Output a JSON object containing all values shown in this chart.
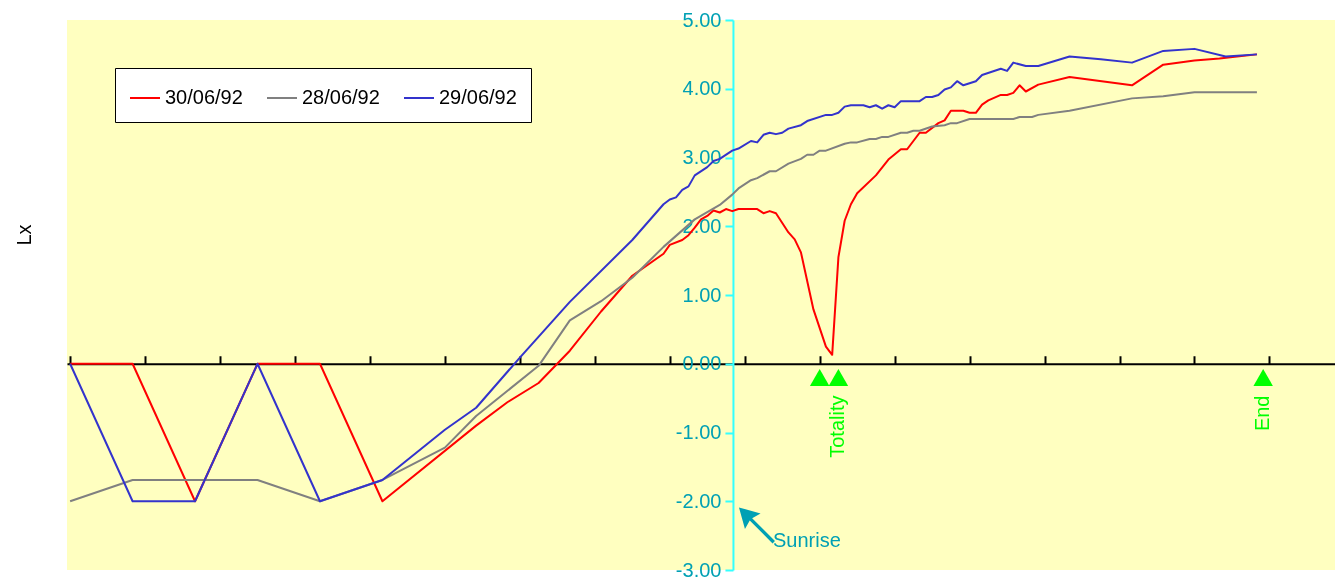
{
  "chart_data": {
    "type": "line",
    "ylabel": "Lx",
    "legend": "top left",
    "tick_labels": "y",
    "marker": "none",
    "line_style": "solid",
    "categories": [
      null,
      null,
      null,
      null,
      null,
      null,
      null,
      null,
      null,
      null,
      null,
      null,
      null,
      null,
      null,
      null,
      null,
      null,
      null,
      null,
      null,
      null,
      null,
      null,
      null,
      null,
      null,
      null,
      null,
      null,
      null,
      null,
      null,
      null,
      null,
      null,
      null,
      null,
      null,
      null,
      null,
      null,
      null,
      null,
      null,
      null,
      null,
      null,
      null,
      null,
      null,
      null,
      null,
      null,
      null,
      null,
      null,
      null,
      null,
      null,
      null,
      null,
      null,
      null,
      null,
      null,
      null,
      null,
      null,
      null,
      null,
      null,
      null,
      null,
      null,
      null,
      null,
      null,
      null,
      null,
      null,
      null,
      null,
      null,
      null,
      null,
      null,
      null,
      null,
      null,
      null,
      null,
      null,
      null,
      null,
      null,
      null,
      null,
      null,
      null,
      null,
      null,
      null,
      null,
      null,
      null,
      null,
      null,
      null,
      null,
      null,
      null,
      null,
      null,
      null,
      null,
      null,
      null,
      null,
      null,
      null,
      null,
      null,
      null,
      null,
      null,
      null,
      null,
      null,
      null,
      null,
      null,
      null,
      null,
      null,
      null,
      null,
      null,
      null,
      null,
      null,
      null,
      null,
      null,
      null,
      null,
      null,
      null,
      null,
      null,
      null,
      null,
      null,
      null,
      null,
      null,
      null,
      null,
      null,
      null,
      null,
      null,
      null,
      null,
      null,
      null,
      null,
      null,
      null,
      null,
      null,
      null,
      null,
      null,
      null,
      null,
      null,
      null,
      null,
      null,
      null,
      null,
      null,
      null,
      null,
      null,
      null,
      null,
      null,
      null,
      null,
      null,
      null,
      null,
      null,
      null,
      null,
      null,
      null,
      null,
      null,
      null,
      null
    ],
    "ylim": [
      -3,
      5
    ],
    "yticks": [
      {
        "value": -3,
        "label": "-3.00"
      },
      {
        "value": -2,
        "label": "-2.00"
      },
      {
        "value": -1,
        "label": "-1.00"
      },
      {
        "value": 0,
        "label": "0.00"
      },
      {
        "value": 1,
        "label": "1.00"
      },
      {
        "value": 2,
        "label": "2.00"
      },
      {
        "value": 3,
        "label": "3.00"
      },
      {
        "value": 4,
        "label": "4.00"
      },
      {
        "value": 5,
        "label": "5.00"
      }
    ],
    "series": [
      {
        "name": "30/06/92",
        "color": "#ff0000",
        "values": [
          0,
          null,
          null,
          null,
          null,
          null,
          null,
          null,
          null,
          null,
          0,
          null,
          null,
          null,
          null,
          null,
          null,
          null,
          null,
          null,
          -2,
          null,
          null,
          null,
          null,
          null,
          null,
          null,
          null,
          null,
          0,
          null,
          null,
          null,
          null,
          null,
          null,
          null,
          null,
          null,
          0,
          null,
          null,
          null,
          null,
          null,
          null,
          null,
          null,
          null,
          -2,
          null,
          null,
          null,
          null,
          null,
          null,
          null,
          null,
          null,
          null,
          null,
          null,
          null,
          null,
          -0.9,
          null,
          null,
          null,
          null,
          -0.56,
          null,
          null,
          null,
          null,
          -0.28,
          null,
          null,
          null,
          null,
          0.19,
          null,
          null,
          null,
          null,
          0.76,
          null,
          null,
          null,
          null,
          1.28,
          null,
          null,
          null,
          null,
          1.6,
          1.73,
          null,
          1.8,
          1.87,
          1.98,
          2.1,
          2.15,
          2.23,
          2.2,
          2.25,
          2.22,
          2.25,
          null,
          null,
          2.25,
          2.19,
          2.22,
          2.19,
          null,
          1.91,
          1.81,
          1.62,
          null,
          0.79,
          null,
          0.25,
          0.13,
          1.55,
          2.08,
          2.32,
          2.48,
          null,
          null,
          2.74,
          null,
          2.97,
          null,
          3.12,
          3.12,
          null,
          3.36,
          3.36,
          null,
          3.5,
          3.54,
          3.68,
          null,
          3.68,
          3.65,
          3.65,
          3.77,
          3.83,
          null,
          3.91,
          3.91,
          3.94,
          4.05,
          3.96,
          null,
          4.06,
          null,
          null,
          null,
          null,
          4.17,
          null,
          null,
          null,
          null,
          null,
          null,
          null,
          null,
          null,
          4.05,
          null,
          null,
          null,
          null,
          4.35,
          null,
          null,
          null,
          null,
          4.41,
          null,
          null,
          null,
          4.44,
          null,
          null,
          null,
          null,
          null,
          4.5,
          null,
          null,
          null,
          null,
          null,
          null,
          null,
          null,
          null,
          null,
          null,
          null
        ]
      },
      {
        "name": "28/06/92",
        "color": "#808080",
        "values": [
          -2,
          null,
          null,
          null,
          null,
          null,
          null,
          null,
          null,
          null,
          -1.69,
          null,
          null,
          null,
          null,
          null,
          null,
          null,
          null,
          null,
          null,
          null,
          null,
          null,
          null,
          null,
          null,
          null,
          null,
          null,
          -1.69,
          null,
          null,
          null,
          null,
          null,
          null,
          null,
          null,
          null,
          -2,
          null,
          null,
          null,
          null,
          null,
          null,
          null,
          null,
          null,
          -1.69,
          null,
          null,
          null,
          null,
          null,
          null,
          null,
          null,
          null,
          -1.22,
          null,
          null,
          null,
          null,
          -0.76,
          null,
          null,
          null,
          null,
          null,
          null,
          null,
          null,
          null,
          -0.03,
          null,
          null,
          null,
          null,
          0.63,
          null,
          null,
          null,
          null,
          0.91,
          null,
          null,
          null,
          null,
          1.25,
          null,
          null,
          null,
          null,
          1.7,
          null,
          null,
          null,
          null,
          2.1,
          null,
          null,
          null,
          2.31,
          null,
          2.46,
          2.55,
          null,
          2.67,
          2.7,
          null,
          2.8,
          2.8,
          null,
          2.91,
          null,
          2.98,
          3.04,
          3.04,
          3.1,
          3.1,
          null,
          null,
          3.2,
          3.22,
          3.22,
          null,
          3.27,
          3.27,
          3.3,
          3.3,
          null,
          3.36,
          3.36,
          3.39,
          3.39,
          null,
          3.45,
          null,
          3.47,
          3.5,
          3.5,
          null,
          3.56,
          null,
          null,
          null,
          null,
          null,
          null,
          3.56,
          3.59,
          null,
          3.59,
          3.62,
          null,
          null,
          null,
          null,
          3.68,
          null,
          null,
          null,
          null,
          null,
          null,
          null,
          null,
          null,
          3.86,
          null,
          null,
          null,
          null,
          3.89,
          null,
          null,
          null,
          null,
          3.95,
          null,
          null,
          null,
          null,
          null,
          null,
          null,
          null,
          null,
          3.95,
          null,
          null,
          null,
          null,
          null,
          null,
          null,
          null,
          null,
          null,
          null,
          null
        ]
      },
      {
        "name": "29/06/92",
        "color": "#3333cc",
        "values": [
          0,
          null,
          null,
          null,
          null,
          null,
          null,
          null,
          null,
          null,
          -2,
          null,
          null,
          null,
          null,
          null,
          null,
          null,
          null,
          null,
          -2,
          null,
          null,
          null,
          null,
          null,
          null,
          null,
          null,
          null,
          0,
          null,
          null,
          null,
          null,
          null,
          null,
          null,
          null,
          null,
          -2,
          null,
          null,
          null,
          null,
          null,
          null,
          null,
          null,
          null,
          -1.69,
          null,
          null,
          null,
          null,
          null,
          null,
          null,
          null,
          null,
          -0.96,
          null,
          null,
          null,
          null,
          -0.64,
          null,
          null,
          null,
          null,
          null,
          null,
          0.09,
          null,
          null,
          null,
          null,
          null,
          null,
          null,
          0.9,
          null,
          null,
          null,
          null,
          null,
          null,
          null,
          null,
          null,
          1.8,
          null,
          null,
          null,
          null,
          2.32,
          2.39,
          2.42,
          2.53,
          2.58,
          2.74,
          null,
          2.86,
          2.95,
          2.98,
          null,
          3.1,
          3.13,
          null,
          3.24,
          3.22,
          3.33,
          3.36,
          3.34,
          3.36,
          3.42,
          null,
          3.47,
          3.53,
          null,
          null,
          3.62,
          3.62,
          3.65,
          3.74,
          3.76,
          null,
          3.76,
          3.73,
          3.76,
          3.71,
          3.76,
          3.73,
          3.82,
          null,
          null,
          3.82,
          3.88,
          3.88,
          3.91,
          3.99,
          4.02,
          4.11,
          4.05,
          null,
          4.11,
          4.2,
          null,
          null,
          4.29,
          4.26,
          4.38,
          null,
          4.33,
          null,
          4.33,
          null,
          null,
          null,
          null,
          4.47,
          null,
          null,
          null,
          null,
          4.43,
          null,
          null,
          null,
          null,
          4.38,
          null,
          null,
          null,
          null,
          4.55,
          null,
          null,
          null,
          null,
          4.58,
          null,
          null,
          null,
          null,
          4.47,
          null,
          null,
          null,
          null,
          4.5,
          null,
          null,
          null,
          null,
          null,
          null,
          null,
          null,
          null,
          null,
          null,
          null
        ]
      },
      {
        "type": "scatter",
        "color": "#00ff00",
        "marker": "triangle",
        "values": [
          null,
          null,
          null,
          null,
          null,
          null,
          null,
          null,
          null,
          null,
          null,
          null,
          null,
          null,
          null,
          null,
          null,
          null,
          null,
          null,
          null,
          null,
          null,
          null,
          null,
          null,
          null,
          null,
          null,
          null,
          null,
          null,
          null,
          null,
          null,
          null,
          null,
          null,
          null,
          null,
          null,
          null,
          null,
          null,
          null,
          null,
          null,
          null,
          null,
          null,
          null,
          null,
          null,
          null,
          null,
          null,
          null,
          null,
          null,
          null,
          null,
          null,
          null,
          null,
          null,
          null,
          null,
          null,
          null,
          null,
          null,
          null,
          null,
          null,
          null,
          null,
          null,
          null,
          null,
          null,
          null,
          null,
          null,
          null,
          null,
          null,
          null,
          null,
          null,
          null,
          null,
          null,
          null,
          null,
          null,
          null,
          null,
          null,
          null,
          null,
          null,
          null,
          null,
          null,
          null,
          null,
          null,
          null,
          null,
          null,
          null,
          null,
          null,
          null,
          null,
          null,
          null,
          null,
          null,
          null,
          -0.2,
          null,
          null,
          -0.2,
          null,
          null,
          null,
          null,
          null,
          null,
          null,
          null,
          null,
          null,
          null,
          null,
          null,
          null,
          null,
          null,
          null,
          null,
          null,
          null,
          null,
          null,
          null,
          null,
          null,
          null,
          null,
          null,
          null,
          null,
          null,
          null,
          null,
          null,
          null,
          null,
          null,
          null,
          null,
          null,
          null,
          null,
          null,
          null,
          null,
          null,
          null,
          null,
          null,
          null,
          null,
          null,
          null,
          null,
          null,
          null,
          null,
          null,
          null,
          null,
          null,
          null,
          null,
          null,
          null,
          null,
          null,
          -0.2,
          null,
          null,
          null,
          null,
          null,
          null,
          null,
          null,
          null,
          null,
          null
        ]
      }
    ],
    "annotations": [
      {
        "text": "Totality",
        "y": -0.2
      },
      {
        "text": "End",
        "y": -0.2
      },
      "Sunrise"
    ]
  }
}
